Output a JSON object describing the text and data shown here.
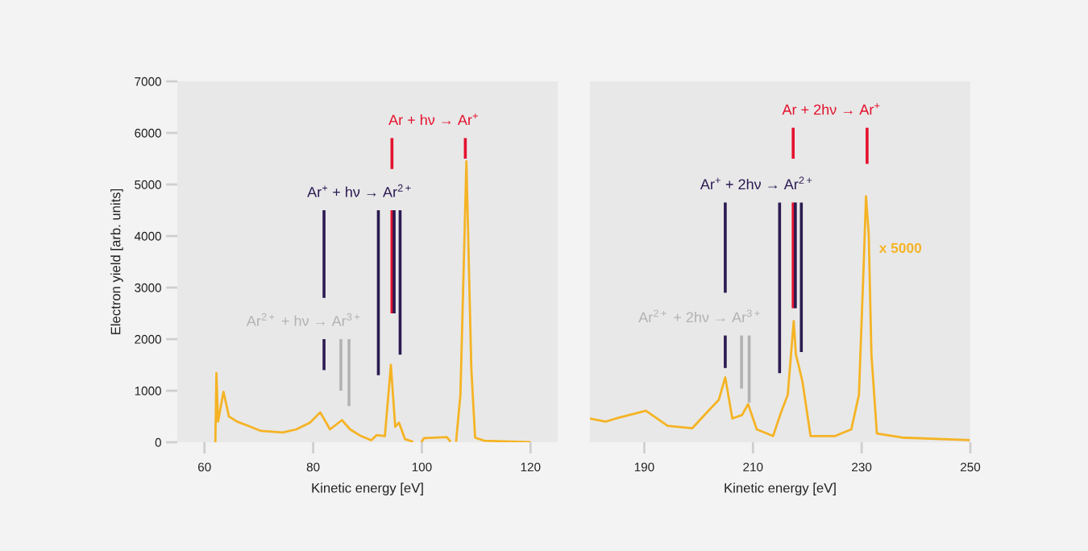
{
  "chart_data": [
    {
      "type": "line",
      "xlabel": "Kinetic energy [eV]",
      "ylabel": "Electron yield [arb. units]",
      "xlim": [
        55,
        125
      ],
      "xticks": [
        60,
        80,
        100,
        120
      ],
      "ylim": [
        0,
        7000
      ],
      "yticks": [
        0,
        1000,
        2000,
        3000,
        4000,
        5000,
        6000,
        7000
      ],
      "series": [
        {
          "color": "#f5b324",
          "x": [
            62.0,
            62.2,
            62.5,
            63.5,
            64.5,
            66.0,
            68.0,
            70.4,
            74.4,
            76.9,
            79.4,
            81.3,
            83.1,
            85.3,
            86.8,
            88.8,
            90.7,
            91.7,
            93.2,
            94.3,
            95.1,
            95.8,
            96.9,
            98.4,
            null,
            99.9,
            100.4,
            104.6,
            105.3,
            null,
            106.3,
            107.1,
            108.2,
            109.1,
            109.8,
            111.5,
            120.0
          ],
          "values": [
            0,
            1340,
            400,
            980,
            500,
            400,
            320,
            220,
            190,
            250,
            380,
            580,
            250,
            430,
            250,
            120,
            40,
            140,
            120,
            1500,
            300,
            380,
            60,
            10,
            null,
            0,
            80,
            100,
            10,
            null,
            10,
            920,
            5450,
            1440,
            90,
            30,
            0
          ]
        },
        {
          "name": "Ar + hν → Ar$^{+}$",
          "color": "#e4122d",
          "x": [
            108.0,
            108.0
          ],
          "values": [
            5900,
            5500
          ]
        },
        {
          "color": "#e4122d",
          "x": [
            94.5,
            94.5
          ],
          "values": [
            5900,
            5300
          ]
        },
        {
          "color": "#e4122d",
          "x": [
            94.5,
            94.5
          ],
          "values": [
            4500,
            2500
          ]
        },
        {
          "name": "Ar$^{+}$ + hν → Ar$^{2+}$",
          "color": "#2b1b52",
          "x": [
            96.0,
            96.0
          ],
          "values": [
            4500,
            1700
          ]
        },
        {
          "color": "#2b1b52",
          "x": [
            82.0,
            82.0
          ],
          "values": [
            4500,
            2800
          ]
        },
        {
          "color": "#2b1b52",
          "x": [
            82.0,
            82.0
          ],
          "values": [
            2000,
            1400
          ]
        },
        {
          "color": "#2b1b52",
          "x": [
            92.0,
            92.0
          ],
          "values": [
            4500,
            1300
          ]
        },
        {
          "color": "#2b1b52",
          "x": [
            94.9,
            94.9
          ],
          "values": [
            4500,
            2500
          ]
        },
        {
          "name": "Ar$^{2+}$ + hν → Ar$^{3+}$",
          "color": "#b2b2b2",
          "x": [
            86.6,
            86.6
          ],
          "values": [
            2000,
            700
          ]
        },
        {
          "color": "#b2b2b2",
          "x": [
            85.1,
            85.1
          ],
          "values": [
            2000,
            1000
          ]
        }
      ]
    },
    {
      "type": "line",
      "xlabel": "Kinetic energy [eV]",
      "xlim": [
        180,
        250
      ],
      "xticks": [
        190,
        210,
        230,
        250
      ],
      "ylim": [
        0,
        7000
      ],
      "tick_labels": "x",
      "series": [
        {
          "color": "#f5b324",
          "x": [
            180.0,
            182.9,
            185.4,
            190.3,
            194.3,
            198.8,
            201.8,
            203.7,
            204.9,
            206.2,
            208.0,
            209.1,
            210.7,
            213.7,
            215.1,
            216.4,
            217.5,
            217.9,
            218.4,
            219.1,
            220.6,
            225.1,
            228.1,
            229.5,
            230.4,
            230.8,
            231.3,
            231.8,
            232.8,
            237.5,
            249.9
          ],
          "values": [
            460,
            400,
            480,
            610,
            320,
            270,
            610,
            820,
            1260,
            460,
            530,
            740,
            250,
            120,
            560,
            920,
            2350,
            1700,
            1490,
            1180,
            120,
            120,
            250,
            920,
            3520,
            4770,
            4040,
            1700,
            170,
            90,
            40
          ]
        },
        {
          "name": "Ar + 2hν → Ar$^{+}$",
          "color": "#e4122d",
          "x": [
            231.0,
            231.0
          ],
          "values": [
            6100,
            5400
          ]
        },
        {
          "color": "#e4122d",
          "x": [
            217.4,
            217.4
          ],
          "values": [
            6100,
            5500
          ]
        },
        {
          "color": "#e4122d",
          "x": [
            217.4,
            217.4
          ],
          "values": [
            4650,
            2600
          ]
        },
        {
          "name": "Ar$^{+}$ + 2hν → Ar$^{2+}$",
          "color": "#2b1b52",
          "x": [
            218.9,
            218.9
          ],
          "values": [
            4650,
            1750
          ]
        },
        {
          "color": "#2b1b52",
          "x": [
            204.9,
            204.9
          ],
          "values": [
            4650,
            2900
          ]
        },
        {
          "color": "#2b1b52",
          "x": [
            204.9,
            204.9
          ],
          "values": [
            2070,
            1440
          ]
        },
        {
          "color": "#2b1b52",
          "x": [
            214.9,
            214.9
          ],
          "values": [
            4650,
            1340
          ]
        },
        {
          "color": "#2b1b52",
          "x": [
            217.8,
            217.8
          ],
          "values": [
            4650,
            2600
          ]
        },
        {
          "name": "Ar$^{2+}$ + 2hν → Ar$^{3+}$",
          "color": "#b2b2b2",
          "x": [
            209.3,
            209.3
          ],
          "values": [
            2070,
            770
          ]
        },
        {
          "color": "#b2b2b2",
          "x": [
            207.9,
            207.9
          ],
          "values": [
            2070,
            1040
          ]
        }
      ],
      "annotations": [
        "x 5000"
      ]
    }
  ]
}
